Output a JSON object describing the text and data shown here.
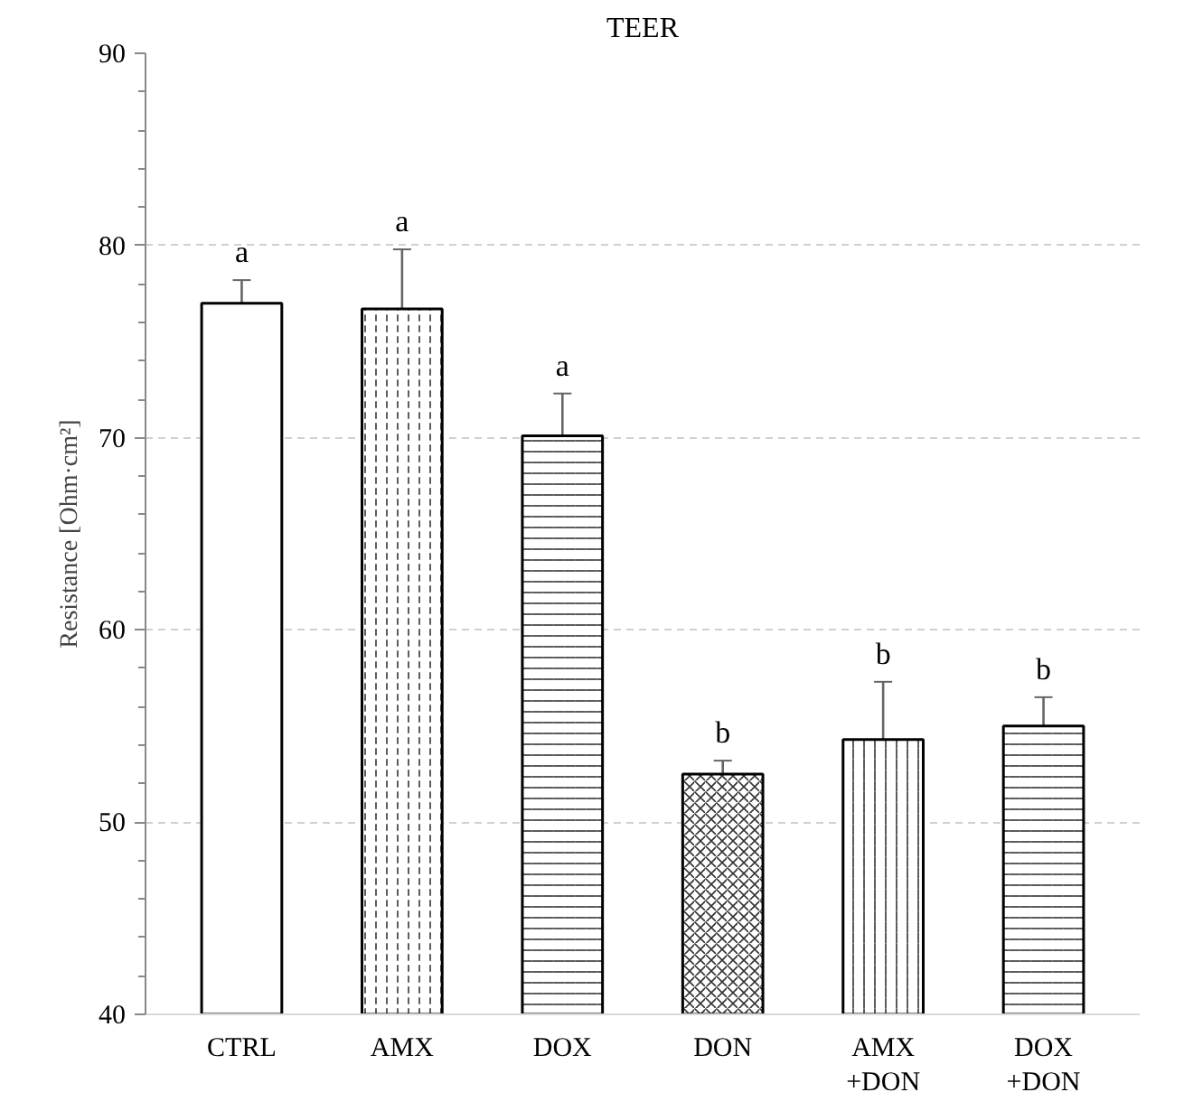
{
  "chart_data": {
    "type": "bar",
    "title": "TEER",
    "ylabel": "Resistance [Ohm·cm²]",
    "categories": [
      "CTRL",
      "AMX",
      "DOX",
      "DON",
      "AMX\n+DON",
      "DOX\n+DON"
    ],
    "values": [
      77.0,
      76.7,
      70.1,
      52.5,
      54.3,
      55.0
    ],
    "errors": [
      1.2,
      3.1,
      2.2,
      0.7,
      3.0,
      1.5
    ],
    "color": "#ffffff",
    "ylim": [
      40,
      90
    ],
    "yticks": [
      40,
      50,
      60,
      70,
      80,
      90
    ],
    "grid": "y",
    "annotations": [
      "a",
      "a",
      "a",
      "b",
      "b",
      "b"
    ]
  }
}
